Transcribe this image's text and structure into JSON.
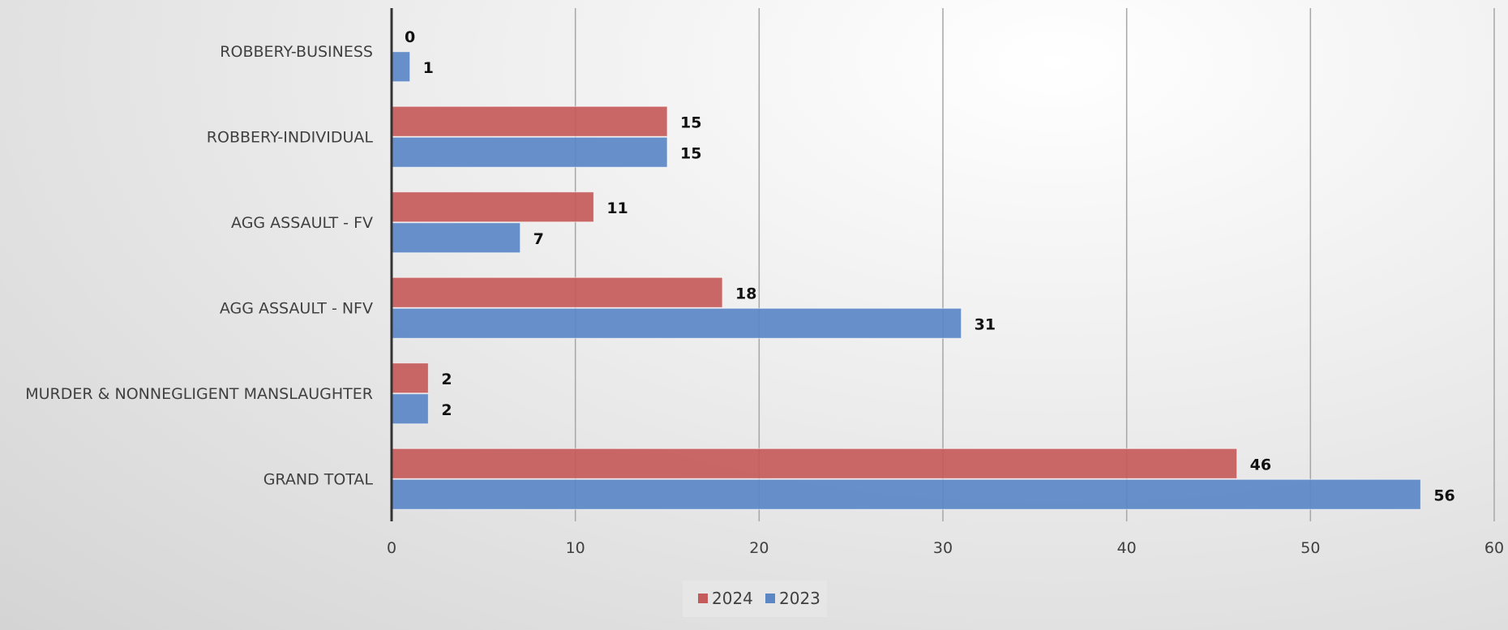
{
  "chart_data": {
    "type": "bar",
    "orientation": "horizontal",
    "title": "",
    "xlabel": "",
    "ylabel": "",
    "categories": [
      "ROBBERY-BUSINESS",
      "ROBBERY-INDIVIDUAL",
      "AGG ASSAULT - FV",
      "AGG ASSAULT - NFV",
      "MURDER & NONNEGLIGENT MANSLAUGHTER",
      "GRAND TOTAL"
    ],
    "series": [
      {
        "name": "2024",
        "color": "#c55a5a",
        "values": [
          0,
          15,
          11,
          18,
          2,
          46
        ]
      },
      {
        "name": "2023",
        "color": "#5b87c5",
        "values": [
          1,
          15,
          7,
          31,
          2,
          56
        ]
      }
    ],
    "xlim": [
      0,
      60
    ],
    "xticks": [
      "0",
      "10",
      "20",
      "30",
      "40",
      "50",
      "60"
    ],
    "grid": true,
    "legend_position": "bottom"
  }
}
